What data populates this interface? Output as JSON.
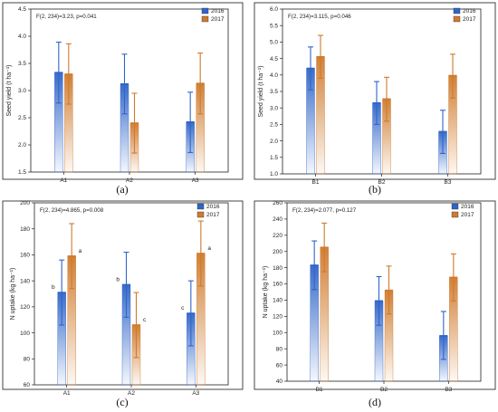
{
  "colors": {
    "s2016": "#2f64c8",
    "s2017": "#cf7a2c",
    "frame": "#222222"
  },
  "legend": [
    "2016",
    "2017"
  ],
  "chart_data": [
    {
      "type": "bar",
      "caption": "(a)",
      "stat": "F(2, 234)=3.23, p=0.041",
      "ylabel": "Seed yield (t ha⁻¹)",
      "ylim": [
        1.5,
        4.5
      ],
      "yticks": [
        "1.5",
        "2.0",
        "2.5",
        "3.0",
        "3.5",
        "4.0",
        "4.5"
      ],
      "categories": [
        "A1",
        "A2",
        "A3"
      ],
      "series": [
        {
          "name": "2016",
          "values": [
            3.33,
            3.12,
            2.42
          ],
          "err_low": [
            2.77,
            2.57,
            1.86
          ],
          "err_high": [
            3.89,
            3.67,
            2.97
          ],
          "labels": [
            "",
            "",
            ""
          ]
        },
        {
          "name": "2017",
          "values": [
            3.3,
            2.4,
            3.13
          ],
          "err_low": [
            2.75,
            1.85,
            2.57
          ],
          "err_high": [
            3.86,
            2.95,
            3.69
          ],
          "labels": [
            "",
            "",
            ""
          ]
        }
      ]
    },
    {
      "type": "bar",
      "caption": "(b)",
      "stat": "F(2, 234)=3.115, p=0.046",
      "ylabel": "Seed yield (t ha⁻¹)",
      "ylim": [
        1.0,
        6.0
      ],
      "yticks": [
        "1.0",
        "1.5",
        "2.0",
        "2.5",
        "3.0",
        "3.5",
        "4.0",
        "4.5",
        "5.0",
        "5.5",
        "6.0"
      ],
      "categories": [
        "B1",
        "B2",
        "B3"
      ],
      "series": [
        {
          "name": "2016",
          "values": [
            4.2,
            3.15,
            2.28
          ],
          "err_low": [
            3.55,
            2.5,
            1.62
          ],
          "err_high": [
            4.85,
            3.8,
            2.93
          ],
          "labels": [
            "",
            "",
            ""
          ]
        },
        {
          "name": "2017",
          "values": [
            4.55,
            3.27,
            3.98
          ],
          "err_low": [
            3.9,
            2.6,
            3.3
          ],
          "err_high": [
            5.2,
            3.93,
            4.63
          ],
          "labels": [
            "",
            "",
            ""
          ]
        }
      ]
    },
    {
      "type": "bar",
      "caption": "(c)",
      "stat": "F(2, 234)=4.865, p=0.008",
      "ylabel": "N uptake (kg ha⁻¹)",
      "ylim": [
        60,
        200
      ],
      "yticks": [
        "60",
        "80",
        "100",
        "120",
        "140",
        "160",
        "180",
        "200"
      ],
      "categories": [
        "A1",
        "A2",
        "A3"
      ],
      "series": [
        {
          "name": "2016",
          "values": [
            131,
            137,
            115
          ],
          "err_low": [
            106,
            112,
            90
          ],
          "err_high": [
            156,
            162,
            140
          ],
          "labels": [
            "b",
            "b",
            "c"
          ]
        },
        {
          "name": "2017",
          "values": [
            159,
            106,
            161
          ],
          "err_low": [
            134,
            81,
            136
          ],
          "err_high": [
            184,
            131,
            186
          ],
          "labels": [
            "a",
            "c",
            "a"
          ]
        }
      ]
    },
    {
      "type": "bar",
      "caption": "(d)",
      "stat": "F(2, 234)=2.077, p=0.127",
      "ylabel": "N uptake (kg ha⁻¹)",
      "ylim": [
        40,
        260
      ],
      "yticks": [
        "40",
        "60",
        "80",
        "100",
        "120",
        "140",
        "160",
        "180",
        "200",
        "220",
        "240",
        "260"
      ],
      "categories": [
        "B1",
        "B2",
        "B3"
      ],
      "series": [
        {
          "name": "2016",
          "values": [
            183,
            139,
            96
          ],
          "err_low": [
            153,
            109,
            67
          ],
          "err_high": [
            213,
            169,
            126
          ],
          "labels": [
            "",
            "",
            ""
          ]
        },
        {
          "name": "2017",
          "values": [
            205,
            152,
            168
          ],
          "err_low": [
            175,
            123,
            139
          ],
          "err_high": [
            235,
            182,
            197
          ],
          "labels": [
            "",
            "",
            ""
          ]
        }
      ]
    }
  ]
}
